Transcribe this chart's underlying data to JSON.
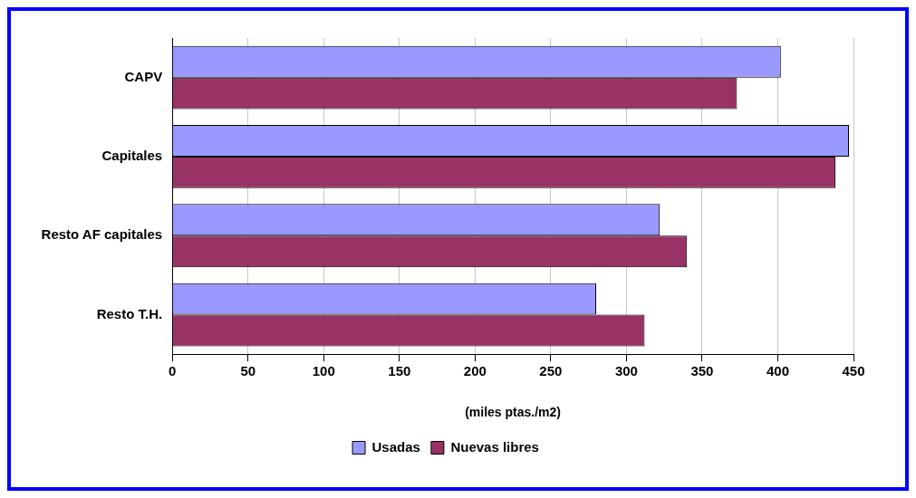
{
  "chart_data": {
    "type": "bar",
    "orientation": "horizontal",
    "categories": [
      "CAPV",
      "Capitales",
      "Resto AF capitales",
      "Resto T.H."
    ],
    "series": [
      {
        "name": "Usadas",
        "color": "#9999ff",
        "values": [
          402,
          447,
          322,
          280
        ]
      },
      {
        "name": "Nuevas libres",
        "color": "#993366",
        "values": [
          373,
          438,
          340,
          312
        ]
      }
    ],
    "xlabel": "(miles ptas./m2)",
    "xlim": [
      0,
      450
    ],
    "xticks": [
      0,
      50,
      100,
      150,
      200,
      250,
      300,
      350,
      400,
      450
    ],
    "grid": "x",
    "legend": "bottom"
  }
}
